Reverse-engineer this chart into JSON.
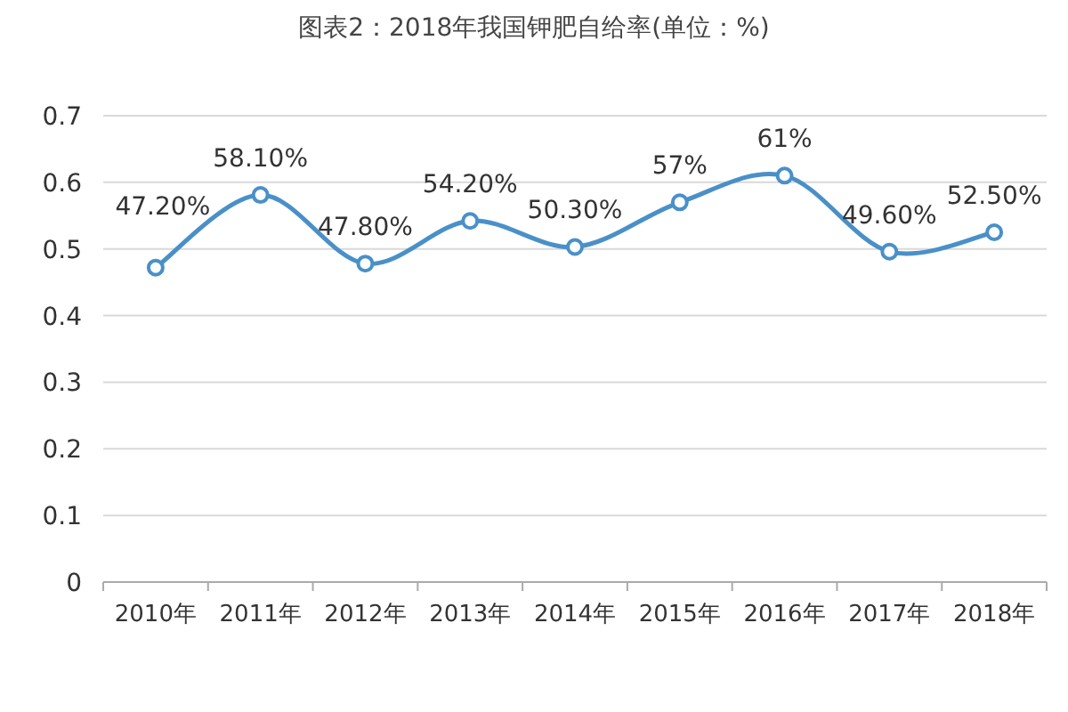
{
  "chart_data": {
    "type": "line",
    "title": "图表2：2018年我国钾肥自给率(单位：%)",
    "categories": [
      "2010年",
      "2011年",
      "2012年",
      "2013年",
      "2014年",
      "2015年",
      "2016年",
      "2017年",
      "2018年"
    ],
    "values": [
      0.472,
      0.581,
      0.478,
      0.542,
      0.503,
      0.57,
      0.61,
      0.496,
      0.525
    ],
    "value_labels": [
      "47.20%",
      "58.10%",
      "47.80%",
      "54.20%",
      "50.30%",
      "57%",
      "61%",
      "49.60%",
      "52.50%"
    ],
    "color": "#4a90c8",
    "marker": "circle",
    "ylim": [
      0,
      0.7
    ],
    "yticks": [
      0,
      0.1,
      0.2,
      0.3,
      0.4,
      0.5,
      0.6,
      0.7
    ],
    "grid": "y"
  }
}
